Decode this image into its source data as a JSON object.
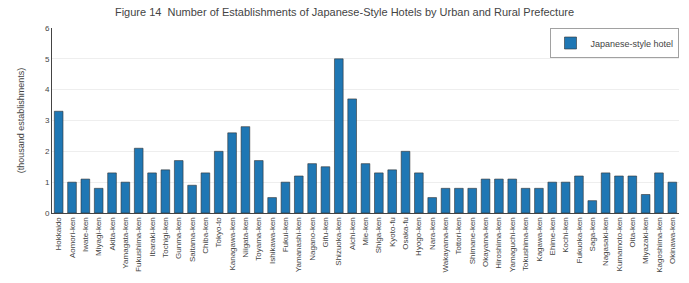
{
  "chart_data": {
    "type": "bar",
    "title": "Figure 14  Number of Establishments of Japanese-Style Hotels by Urban and Rural Prefecture",
    "ylabel": "(thousand establishments)",
    "categories": [
      "Hokkaido",
      "Aomori-ken",
      "Iwate-ken",
      "Miyagi-ken",
      "Akita-ken",
      "Yamagata-ken",
      "Fukushima-ken",
      "Ibaraki-ken",
      "Tochigi-ken",
      "Gunma-ken",
      "Saitama-ken",
      "Chiba-ken",
      "Tokyo-to",
      "Kanagawa-ken",
      "Niigata-ken",
      "Toyama-ken",
      "Ishikawa-ken",
      "Fukui-ken",
      "Yamanashi-ken",
      "Nagano-ken",
      "Gifu-ken",
      "Shizuoka-ken",
      "Aichi-ken",
      "Mie-ken",
      "Shiga-ken",
      "Kyoto-fu",
      "Osaka-fu",
      "Hyogo-ken",
      "Nara-ken",
      "Wakayama-ken",
      "Tottori-ken",
      "Shimane-ken",
      "Okayama-ken",
      "Hiroshima-ken",
      "Yamaguchi-ken",
      "Tokushima-ken",
      "Kagawa-ken",
      "Ehime-ken",
      "Kochi-ken",
      "Fukuoka-ken",
      "Saga-ken",
      "Nagasaki-ken",
      "Kumamoto-ken",
      "Oita-ken",
      "Miyazaki-ken",
      "Kagoshima-ken",
      "Okinawa-ken"
    ],
    "series": [
      {
        "name": "Japanese-style hotel",
        "values": [
          3.3,
          1.0,
          1.1,
          0.8,
          1.3,
          1.0,
          2.1,
          1.3,
          1.4,
          1.7,
          0.9,
          1.3,
          2.0,
          2.6,
          2.8,
          1.7,
          0.5,
          1.0,
          1.2,
          1.6,
          1.5,
          5.0,
          3.7,
          1.6,
          1.3,
          1.4,
          2.0,
          1.3,
          0.5,
          0.8,
          0.8,
          0.8,
          1.1,
          1.1,
          1.1,
          0.8,
          0.8,
          1.0,
          1.0,
          1.2,
          0.4,
          1.3,
          1.2,
          1.2,
          0.6,
          1.3,
          1.0
        ]
      }
    ],
    "ylim": [
      0,
      6
    ],
    "yticks": [
      0,
      1,
      2,
      3,
      4,
      5,
      6
    ],
    "grid": true,
    "legend": "upper right"
  }
}
